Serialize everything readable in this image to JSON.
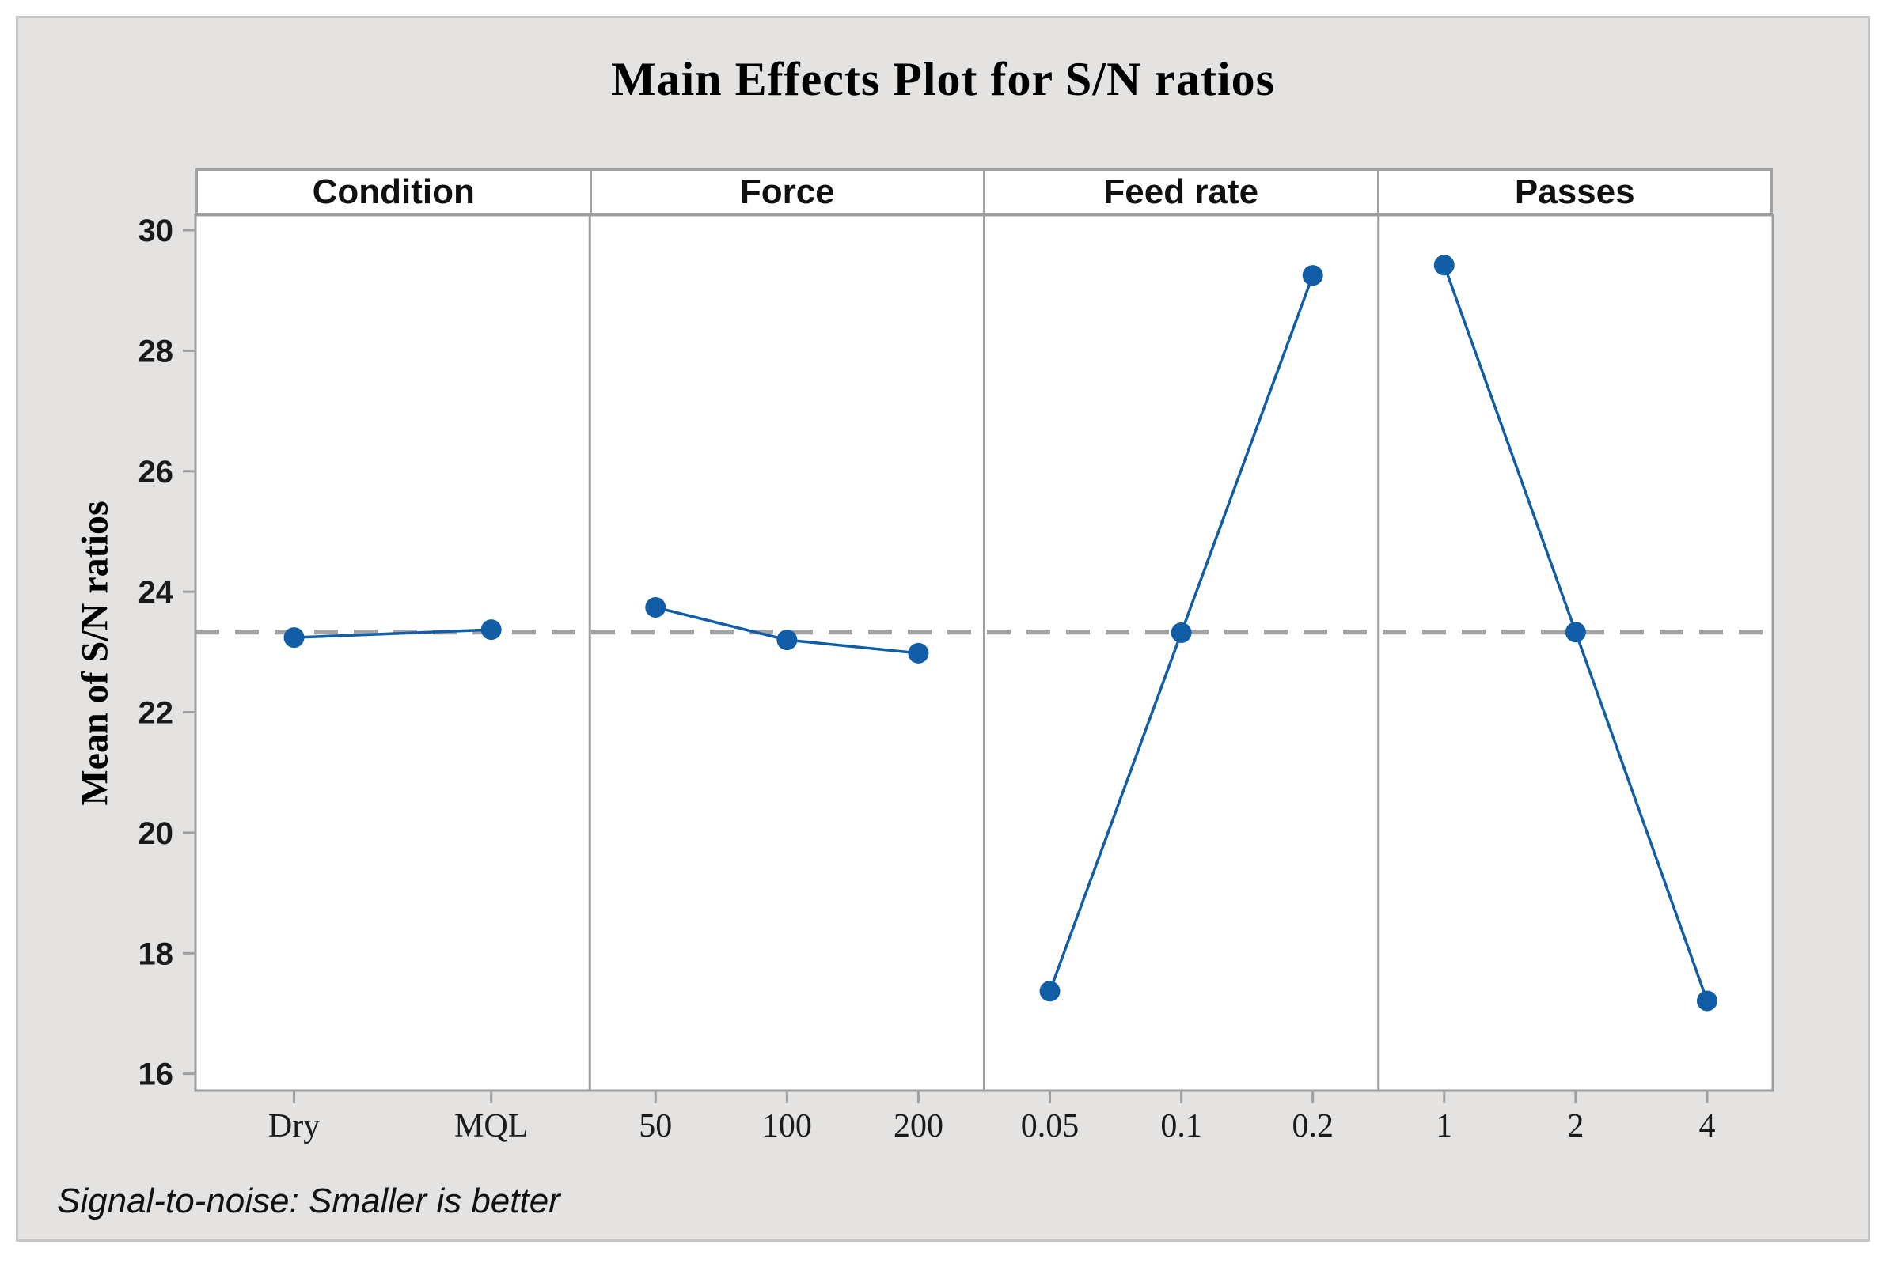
{
  "chart_data": {
    "type": "line",
    "title": "Main Effects Plot for S/N ratios",
    "ylabel": "Mean of S/N ratios",
    "footnote": "Signal-to-noise: Smaller is better",
    "ylim": [
      15.72,
      30.25
    ],
    "yticks": [
      16,
      18,
      20,
      22,
      24,
      26,
      28,
      30
    ],
    "grid": false,
    "legend": false,
    "reference_line": {
      "value": 23.33,
      "style": "dashed"
    },
    "panels": [
      {
        "factor": "Condition",
        "categories": [
          "Dry",
          "MQL"
        ],
        "values": [
          23.24,
          23.37
        ]
      },
      {
        "factor": "Force",
        "categories": [
          "50",
          "100",
          "200"
        ],
        "values": [
          23.74,
          23.2,
          22.98
        ]
      },
      {
        "factor": "Feed rate",
        "categories": [
          "0.05",
          "0.1",
          "0.2"
        ],
        "values": [
          17.37,
          23.32,
          29.25
        ]
      },
      {
        "factor": "Passes",
        "categories": [
          "1",
          "2",
          "4"
        ],
        "values": [
          29.42,
          23.33,
          17.21
        ]
      }
    ]
  },
  "colors": {
    "series": "#115da6",
    "reference_line": "#a3a3a3",
    "axis": "#9e9e9e",
    "figure_background": "#e4e3e1",
    "plot_background": "#ffffff",
    "frame_border": "#c7c6c4"
  }
}
